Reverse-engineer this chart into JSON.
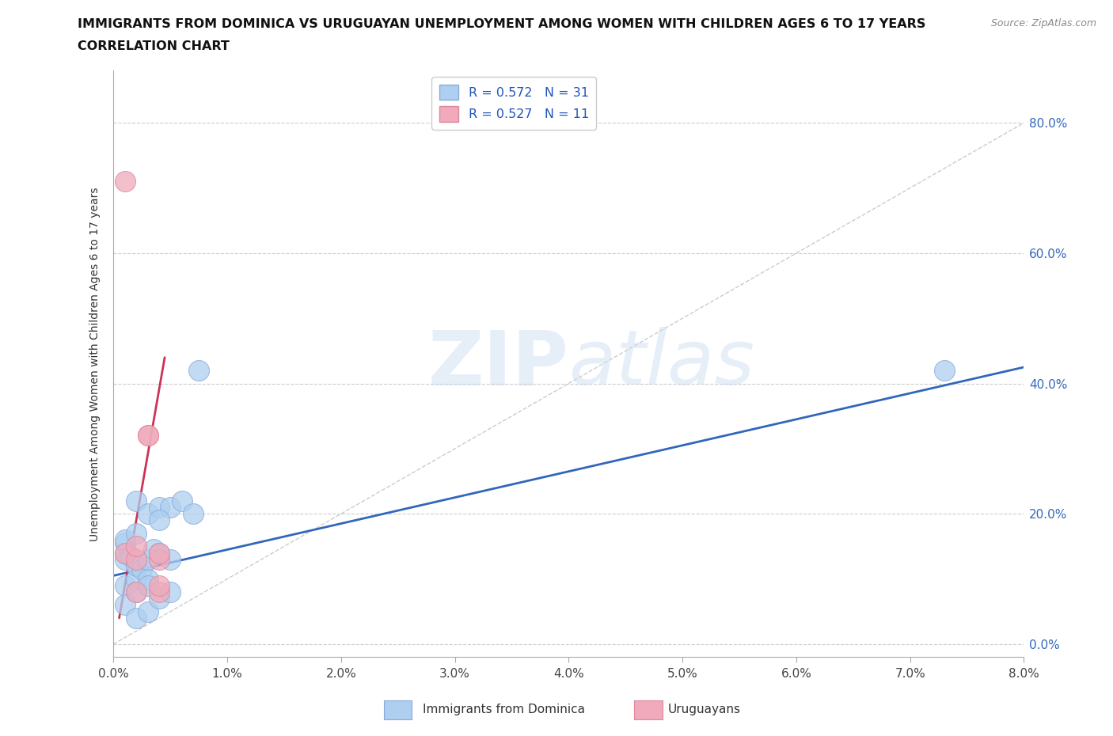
{
  "title_line1": "IMMIGRANTS FROM DOMINICA VS URUGUAYAN UNEMPLOYMENT AMONG WOMEN WITH CHILDREN AGES 6 TO 17 YEARS",
  "title_line2": "CORRELATION CHART",
  "source": "Source: ZipAtlas.com",
  "xlabel_ticks": [
    "0.0%",
    "1.0%",
    "2.0%",
    "3.0%",
    "4.0%",
    "5.0%",
    "6.0%",
    "7.0%",
    "8.0%"
  ],
  "ylabel_ticks": [
    "0.0%",
    "20.0%",
    "40.0%",
    "60.0%",
    "80.0%"
  ],
  "xlim": [
    0.0,
    0.08
  ],
  "ylim": [
    -0.02,
    0.88
  ],
  "blue_R": 0.572,
  "blue_N": 31,
  "pink_R": 0.527,
  "pink_N": 11,
  "blue_color": "#aecff0",
  "pink_color": "#f0aabb",
  "blue_edge": "#88aadd",
  "pink_edge": "#dd8899",
  "trend_blue": "#3366bb",
  "trend_pink": "#cc3355",
  "diag_color": "#cccccc",
  "legend_label_blue": "R = 0.572   N = 31",
  "legend_label_pink": "R = 0.527   N = 11",
  "bottom_label_blue": "Immigrants from Dominica",
  "bottom_label_pink": "Uruguayans",
  "yaxis_label": "Unemployment Among Women with Children Ages 6 to 17 years",
  "watermark_zip": "ZIP",
  "watermark_atlas": "atlas",
  "blue_x": [
    0.001,
    0.001,
    0.001,
    0.001,
    0.001,
    0.0015,
    0.002,
    0.002,
    0.002,
    0.002,
    0.002,
    0.0025,
    0.003,
    0.003,
    0.003,
    0.003,
    0.0035,
    0.004,
    0.004,
    0.005,
    0.005,
    0.006,
    0.007,
    0.0075,
    0.001,
    0.002,
    0.003,
    0.004,
    0.005,
    0.073,
    0.004
  ],
  "blue_y": [
    0.13,
    0.14,
    0.155,
    0.16,
    0.09,
    0.135,
    0.17,
    0.22,
    0.1,
    0.12,
    0.08,
    0.115,
    0.2,
    0.1,
    0.09,
    0.13,
    0.145,
    0.21,
    0.14,
    0.21,
    0.13,
    0.22,
    0.2,
    0.42,
    0.06,
    0.04,
    0.05,
    0.07,
    0.08,
    0.42,
    0.19
  ],
  "pink_x": [
    0.001,
    0.001,
    0.002,
    0.002,
    0.002,
    0.003,
    0.003,
    0.004,
    0.004,
    0.004,
    0.004
  ],
  "pink_y": [
    0.71,
    0.14,
    0.13,
    0.15,
    0.08,
    0.32,
    0.32,
    0.13,
    0.14,
    0.08,
    0.09
  ],
  "blue_trend_x": [
    0.0,
    0.08
  ],
  "blue_trend_y": [
    0.105,
    0.425
  ],
  "pink_trend_x": [
    0.0005,
    0.0045
  ],
  "pink_trend_y": [
    0.04,
    0.44
  ]
}
